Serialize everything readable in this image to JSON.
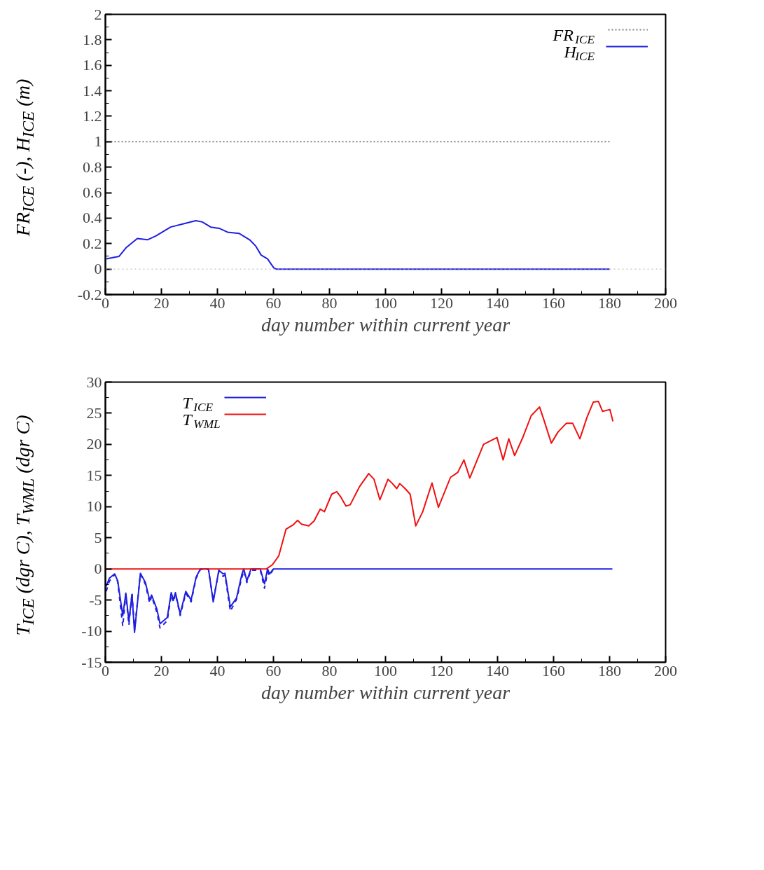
{
  "chart_data": [
    {
      "type": "line",
      "xlabel": "day number within current year",
      "ylabel": "FR$_{ICE}$ (-), H$_{ICE}$ (m)",
      "xlim": [
        0,
        200
      ],
      "xticks": [
        0,
        20,
        40,
        60,
        80,
        100,
        120,
        140,
        160,
        180,
        200
      ],
      "ylim": [
        -0.2,
        2
      ],
      "yticks": [
        -0.2,
        0,
        0.2,
        0.4,
        0.6,
        0.8,
        1,
        1.2,
        1.4,
        1.6,
        1.8,
        2
      ],
      "grid": false,
      "legend": "top right",
      "ref_lines": [
        {
          "axis": "y",
          "value": 0,
          "color": "#b0b0b0",
          "line_style": "dotted"
        }
      ],
      "series": [
        {
          "name": "FR$_{ICE}$",
          "color": "#808080",
          "line_style": "dotted",
          "x": [
            0,
            180
          ],
          "values": [
            1,
            1
          ]
        },
        {
          "name": "H$_{ICE}$",
          "color": "#1f1fe0",
          "line_style": "solid",
          "x": [
            0.4,
            4.9,
            7.5,
            11.4,
            15,
            18,
            23.3,
            28.6,
            32.3,
            34.6,
            37.6,
            40.6,
            43.6,
            47.7,
            51.5,
            53.7,
            55.6,
            57.9,
            60.1,
            61,
            180
          ],
          "values": [
            0.08,
            0.1,
            0.17,
            0.24,
            0.23,
            0.26,
            0.33,
            0.36,
            0.38,
            0.37,
            0.33,
            0.32,
            0.29,
            0.28,
            0.23,
            0.18,
            0.11,
            0.08,
            0.01,
            0,
            0
          ]
        }
      ]
    },
    {
      "type": "line",
      "xlabel": "day number within current year",
      "ylabel": "T$_{ICE}$ (dgr C), T$_{WML}$ (dgr C)",
      "xlim": [
        0,
        200
      ],
      "xticks": [
        0,
        20,
        40,
        60,
        80,
        100,
        120,
        140,
        160,
        180,
        200
      ],
      "ylim": [
        -15,
        30
      ],
      "yticks": [
        -15,
        -10,
        -5,
        0,
        5,
        10,
        15,
        20,
        25,
        30
      ],
      "grid": false,
      "legend": "top left",
      "series": [
        {
          "name": "T$_{ICE}$",
          "color": "#1f1fe0",
          "line_style": "solid",
          "x": [
            0.3,
            1.4,
            3.3,
            4.4,
            6.2,
            7.3,
            8.4,
            9.5,
            10.4,
            12.5,
            14.3,
            15.8,
            16.5,
            18.4,
            19.5,
            22.1,
            23.5,
            24.3,
            25,
            26.7,
            28.7,
            30.6,
            32.4,
            33.9,
            36.8,
            38.5,
            40.5,
            42,
            42.7,
            44.6,
            46.8,
            48.7,
            49.4,
            50.5,
            52,
            55.3,
            56.8,
            57.9,
            58.6,
            60,
            181
          ],
          "values": [
            -2.8,
            -1.5,
            -0.8,
            -1.9,
            -7.5,
            -3.9,
            -8.4,
            -4.1,
            -10.2,
            -0.7,
            -2.2,
            -5,
            -4.2,
            -6.5,
            -8.8,
            -7.8,
            -3.8,
            -5,
            -3.8,
            -7.2,
            -3.6,
            -5,
            -1.3,
            0,
            0,
            -5.3,
            -0.2,
            -0.8,
            -0.7,
            -6.1,
            -4.7,
            -0.9,
            0,
            -1.9,
            0,
            0,
            -2.4,
            0,
            -0.8,
            0,
            0
          ]
        },
        {
          "color": "#1f1fe0",
          "line_style": "dashed",
          "x": [
            0.3,
            1.4,
            3.3,
            4.4,
            6.2,
            7.3,
            8.4,
            9.5,
            10.4,
            12.5,
            14.3,
            15.8,
            16.5,
            18.4,
            19.5,
            22.1,
            23.5,
            24.3,
            25,
            26.7,
            28.7,
            30.6,
            32.4,
            33.9,
            36.8,
            38.5,
            40.5,
            42,
            42.7,
            44.6,
            46.8,
            48.7,
            49.4,
            50.5,
            52,
            55.3,
            56.8,
            57.9,
            58.6,
            60
          ],
          "values": [
            -3.6,
            -2,
            -0.9,
            -2.1,
            -9.2,
            -4.1,
            -9,
            -3.8,
            -9.8,
            -0.8,
            -2.5,
            -5.5,
            -4.4,
            -7,
            -9.5,
            -8.3,
            -4.2,
            -5.3,
            -4,
            -7.5,
            -3.9,
            -5.3,
            -1.5,
            -0.1,
            -0.1,
            -5,
            -0.4,
            -1.2,
            -1,
            -6.8,
            -4.9,
            -1.4,
            -0.3,
            -2.2,
            -0.2,
            -0.2,
            -3.1,
            -0.5,
            -1.1,
            0
          ]
        },
        {
          "name": "T$_{WML}$",
          "color": "#f01010",
          "line_style": "solid",
          "x": [
            0,
            57.5,
            59.7,
            61.9,
            64.5,
            67.1,
            68.6,
            70,
            72.6,
            74.5,
            76.7,
            78.2,
            80.8,
            82.6,
            84.1,
            85.9,
            87.4,
            90.7,
            94,
            95.9,
            98,
            100.9,
            102.5,
            104,
            105.1,
            107,
            108.8,
            110.8,
            113.3,
            116.6,
            118.9,
            123.2,
            125.8,
            128,
            130.1,
            135,
            139.8,
            142,
            144,
            146.1,
            149.1,
            152,
            155,
            156.5,
            159.2,
            161.6,
            164.6,
            166.8,
            169.4,
            171.9,
            174.2,
            176,
            177.5,
            180.1,
            181.2
          ],
          "values": [
            0,
            0,
            0.7,
            2.1,
            6.4,
            7.1,
            7.8,
            7.2,
            6.9,
            7.7,
            9.6,
            9.2,
            12,
            12.4,
            11.5,
            10.1,
            10.3,
            13.2,
            15.3,
            14.4,
            11.1,
            14.4,
            13.7,
            12.9,
            13.7,
            12.9,
            12,
            6.9,
            9.2,
            13.8,
            9.9,
            14.7,
            15.5,
            17.5,
            14.6,
            20,
            21.1,
            17.5,
            20.9,
            18.2,
            21.2,
            24.6,
            26,
            24,
            20.2,
            22,
            23.4,
            23.4,
            20.9,
            24.3,
            26.8,
            26.9,
            25.3,
            25.6,
            23.7
          ]
        }
      ]
    }
  ]
}
